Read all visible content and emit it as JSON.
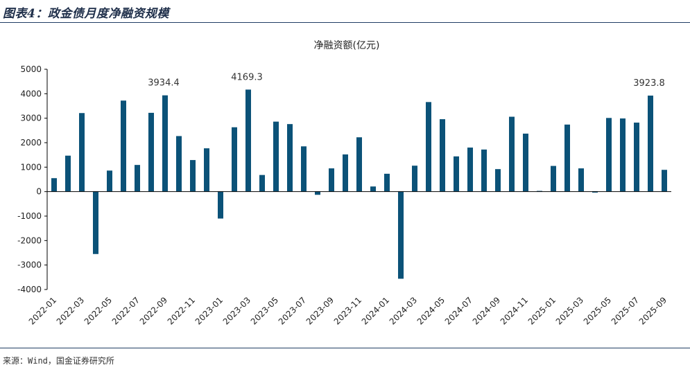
{
  "header": {
    "title": "图表4：政金债月度净融资规模"
  },
  "source": {
    "text": "来源：Wind，国金证券研究所"
  },
  "colors": {
    "bar": "#0b5278",
    "rule": "#1f3d63",
    "axis": "#000000"
  },
  "chart_data": {
    "type": "bar",
    "title": "净融资额(亿元)",
    "xlabel": "",
    "ylabel": "",
    "ylim": [
      -4000,
      5000
    ],
    "yticks": [
      5000,
      4000,
      3000,
      2000,
      1000,
      0,
      -1000,
      -2000,
      -3000,
      -4000
    ],
    "grid": false,
    "legend": "none",
    "categories": [
      "2022-01",
      "2022-02",
      "2022-03",
      "2022-04",
      "2022-05",
      "2022-06",
      "2022-07",
      "2022-08",
      "2022-09",
      "2022-10",
      "2022-11",
      "2022-12",
      "2023-01",
      "2023-02",
      "2023-03",
      "2023-04",
      "2023-05",
      "2023-06",
      "2023-07",
      "2023-08",
      "2023-09",
      "2023-10",
      "2023-11",
      "2023-12",
      "2024-01",
      "2024-02",
      "2024-03",
      "2024-04",
      "2024-05",
      "2024-06",
      "2024-07",
      "2024-08",
      "2024-09",
      "2024-10",
      "2024-11",
      "2024-12",
      "2025-01",
      "2025-02",
      "2025-03",
      "2025-04",
      "2025-05",
      "2025-06",
      "2025-07",
      "2025-08",
      "2025-09"
    ],
    "tick_labels": [
      "2022-01",
      "2022-03",
      "2022-05",
      "2022-07",
      "2022-09",
      "2022-11",
      "2023-01",
      "2023-03",
      "2023-05",
      "2023-07",
      "2023-09",
      "2023-11",
      "2024-01",
      "2024-03",
      "2024-05",
      "2024-07",
      "2024-09",
      "2024-11",
      "2025-01",
      "2025-03",
      "2025-05",
      "2025-07",
      "2025-09"
    ],
    "series": [
      {
        "name": "净融资额",
        "values": [
          550,
          1470,
          3210,
          -2550,
          860,
          3720,
          1090,
          3220,
          3934.4,
          2270,
          1290,
          1770,
          -1100,
          2630,
          4169.3,
          680,
          2860,
          2760,
          1850,
          -130,
          950,
          1520,
          2220,
          210,
          730,
          -3560,
          1060,
          3660,
          2960,
          1440,
          1800,
          1720,
          920,
          3060,
          2370,
          30,
          1050,
          2740,
          950,
          -40,
          3010,
          2990,
          2820,
          3923.8,
          890
        ]
      }
    ],
    "annotations": [
      {
        "category": "2022-09",
        "text": "3934.4"
      },
      {
        "category": "2023-03",
        "text": "4169.3"
      },
      {
        "category": "2025-08",
        "text": "3923.8"
      }
    ]
  }
}
